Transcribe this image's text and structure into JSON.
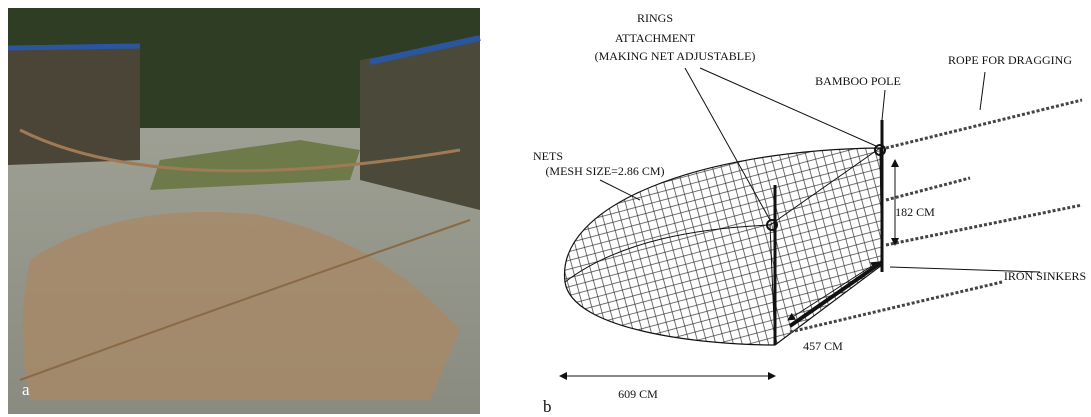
{
  "panels": [
    {
      "label": "a"
    },
    {
      "label": "b",
      "rings_attachment": [
        "RINGS",
        "ATTACHMENT",
        "(MAKING NET ADJUSTABLE)"
      ],
      "nets": [
        "NETS",
        "(MESH SIZE=2.86 CM)"
      ],
      "bamboo_pole": "BAMBOO POLE",
      "rope": "ROPE FOR DRAGGING",
      "height": "182 CM",
      "sinkers": "IRON SINKERS",
      "width": "457 CM",
      "length": "609 CM"
    }
  ]
}
